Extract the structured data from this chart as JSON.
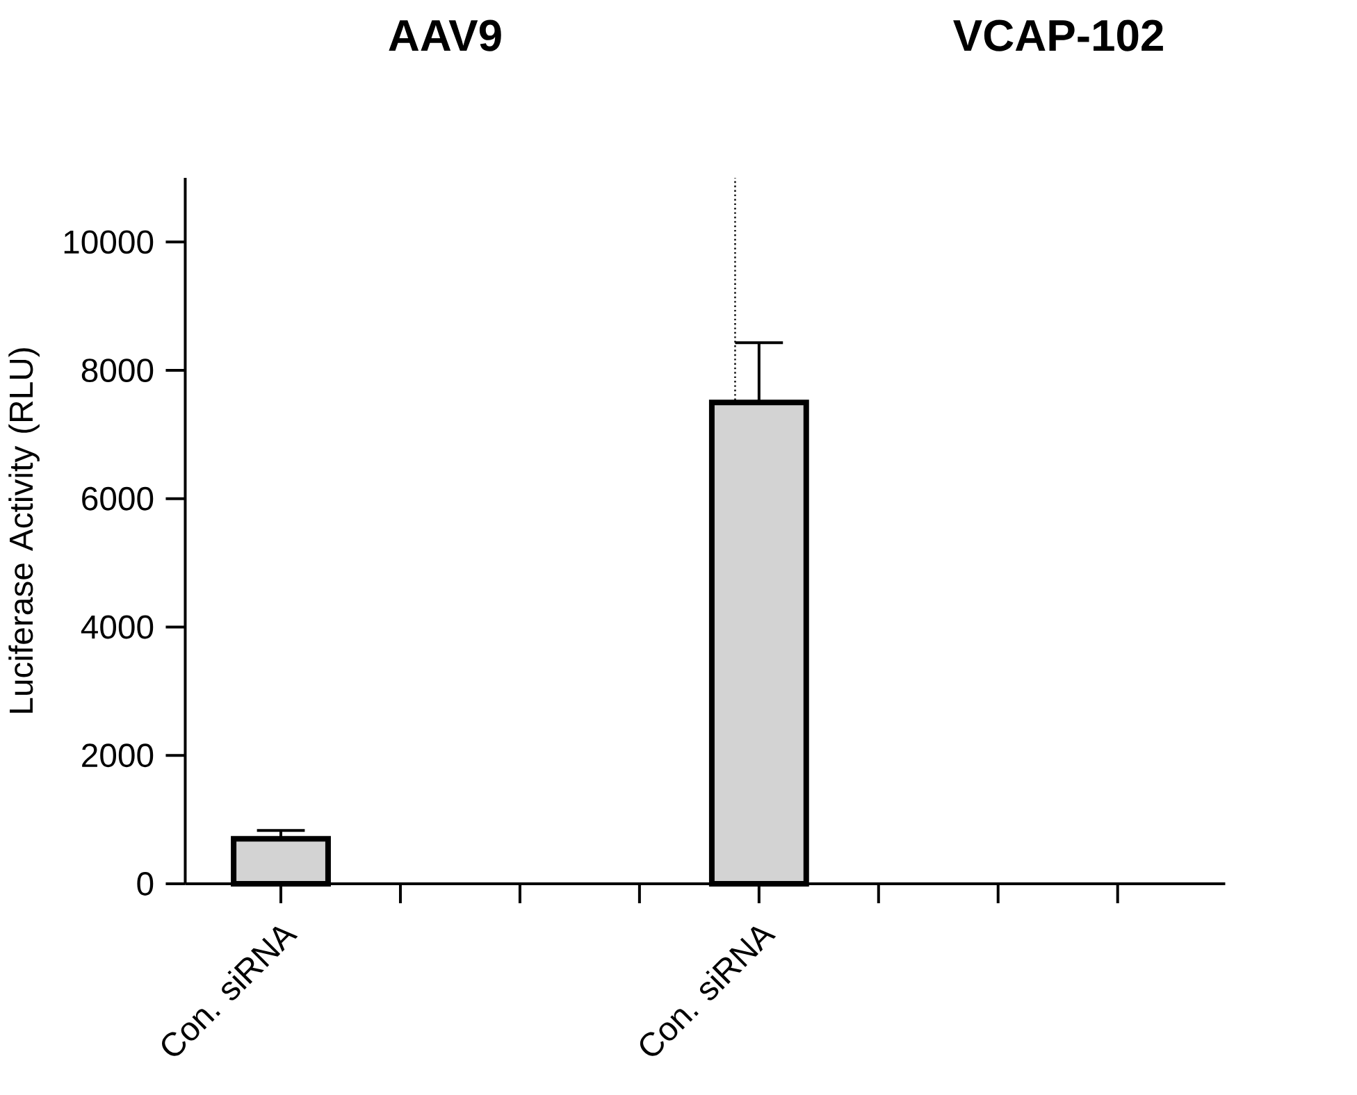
{
  "chart_data": {
    "type": "bar",
    "ylabel": "Luciferase Activity (RLU)",
    "annotations": [
      "AAV9",
      "VCAP-102"
    ],
    "categories": [
      "Con. siRNA",
      null,
      null,
      null,
      "Con. siRNA",
      null,
      null,
      null
    ],
    "values": [
      700,
      null,
      null,
      null,
      7500,
      null,
      null,
      null
    ],
    "errors": [
      [
        700,
        830
      ],
      null,
      null,
      null,
      [
        7500,
        8430
      ],
      null,
      null,
      null
    ],
    "color": "#d3d3d3",
    "ylim": [
      0,
      11000
    ],
    "yticks": [
      0,
      2000,
      4000,
      6000,
      8000,
      10000
    ],
    "grid": false
  }
}
